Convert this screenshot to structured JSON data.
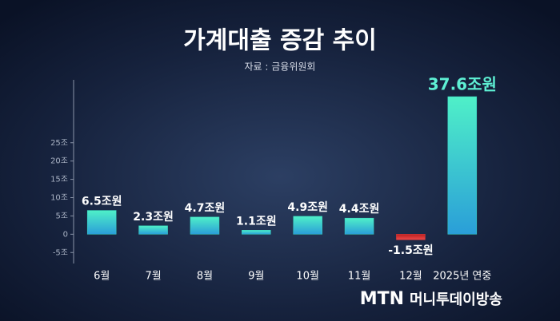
{
  "chart_data": {
    "type": "bar",
    "title": "가계대출 증감 추이",
    "subtitle": "자료 : 금융위원회",
    "categories": [
      "6월",
      "7월",
      "8월",
      "9월",
      "10월",
      "11월",
      "12월",
      "2025년 연중"
    ],
    "values": [
      6.5,
      2.3,
      4.7,
      1.1,
      4.9,
      4.4,
      -1.5,
      37.6
    ],
    "value_labels": [
      "6.5조원",
      "2.3조원",
      "4.7조원",
      "1.1조원",
      "4.9조원",
      "4.4조원",
      "-1.5조원",
      "37.6조원"
    ],
    "color": "#38d8c4",
    "negative_color": "#e03a3a",
    "ylim": [
      -8,
      40
    ],
    "yticks": [
      {
        "value": 25,
        "label": "25조"
      },
      {
        "value": 20,
        "label": "20조"
      },
      {
        "value": 15,
        "label": "15조"
      },
      {
        "value": 10,
        "label": "10조"
      },
      {
        "value": 5,
        "label": "5조"
      },
      0,
      {
        "value": -5,
        "label": "-5조"
      }
    ],
    "logo": {
      "brand": "MTN",
      "name": "머니투데이방송"
    }
  }
}
